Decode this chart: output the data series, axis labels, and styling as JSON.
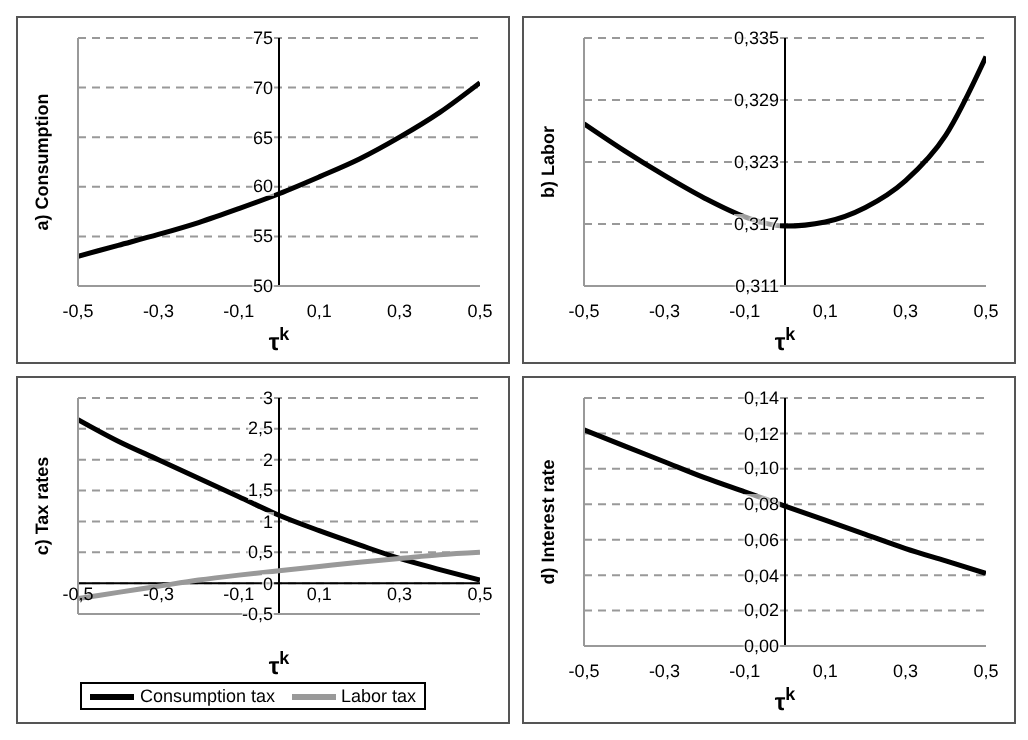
{
  "chart_data": [
    {
      "type": "line",
      "ylabel": "a) Consumption",
      "xlabel": "τ$^{k}$",
      "x": [
        -0.5,
        -0.4,
        -0.3,
        -0.2,
        -0.1,
        0,
        0.1,
        0.2,
        0.3,
        0.4,
        0.5
      ],
      "series": [
        {
          "color": "#000000",
          "values": [
            53,
            54.1,
            55.2,
            56.4,
            57.8,
            59.3,
            61,
            62.8,
            65,
            67.5,
            70.5
          ]
        }
      ],
      "xlim": [
        -0.5,
        0.5
      ],
      "xticks": [
        {
          "value": -0.5,
          "label": "-0,5"
        },
        {
          "value": -0.3,
          "label": "-0,3"
        },
        {
          "value": -0.1,
          "label": "-0,1"
        },
        {
          "value": 0.1,
          "label": "0,1"
        },
        {
          "value": 0.3,
          "label": "0,3"
        },
        {
          "value": 0.5,
          "label": "0,5"
        }
      ],
      "ylim": [
        50,
        75
      ],
      "yticks": [
        50,
        55,
        60,
        65,
        70,
        75
      ],
      "grid": "y"
    },
    {
      "type": "line",
      "ylabel": "b) Labor",
      "xlabel": "τ$^{k}$",
      "x": [
        -0.5,
        -0.4,
        -0.3,
        -0.2,
        -0.1,
        0,
        0.1,
        0.2,
        0.3,
        0.4,
        0.5
      ],
      "series": [
        {
          "color": "#000000",
          "values": [
            0.3267,
            0.3241,
            0.3217,
            0.3195,
            0.3177,
            0.3168,
            0.3172,
            0.3186,
            0.3212,
            0.3256,
            0.3332
          ]
        }
      ],
      "xlim": [
        -0.5,
        0.5
      ],
      "xticks": [
        {
          "value": -0.5,
          "label": "-0,5"
        },
        {
          "value": -0.3,
          "label": "-0,3"
        },
        {
          "value": -0.1,
          "label": "-0,1"
        },
        {
          "value": 0.1,
          "label": "0,1"
        },
        {
          "value": 0.3,
          "label": "0,3"
        },
        {
          "value": 0.5,
          "label": "0,5"
        }
      ],
      "ylim": [
        0.311,
        0.335
      ],
      "yticks": [
        {
          "value": 0.311,
          "label": "0,311"
        },
        {
          "value": 0.317,
          "label": "0,317"
        },
        {
          "value": 0.323,
          "label": "0,323"
        },
        {
          "value": 0.329,
          "label": "0,329"
        },
        {
          "value": 0.335,
          "label": "0,335"
        }
      ],
      "grid": "y"
    },
    {
      "type": "line",
      "ylabel": "c) Tax rates",
      "xlabel": "τ$^{k}$",
      "x": [
        -0.5,
        -0.4,
        -0.3,
        -0.2,
        -0.1,
        0,
        0.1,
        0.2,
        0.3,
        0.4,
        0.5
      ],
      "series": [
        {
          "name": "Consumption tax",
          "color": "#000000",
          "values": [
            2.65,
            2.3,
            2.0,
            1.7,
            1.4,
            1.1,
            0.85,
            0.62,
            0.4,
            0.22,
            0.05
          ]
        },
        {
          "name": "Labor tax",
          "color": "#999999",
          "values": [
            -0.25,
            -0.15,
            -0.05,
            0.05,
            0.13,
            0.2,
            0.27,
            0.34,
            0.4,
            0.46,
            0.5
          ]
        }
      ],
      "xlim": [
        -0.5,
        0.5
      ],
      "xticks": [
        {
          "value": -0.5,
          "label": "-0,5"
        },
        {
          "value": -0.3,
          "label": "-0,3"
        },
        {
          "value": -0.1,
          "label": "-0,1"
        },
        {
          "value": 0.1,
          "label": "0,1"
        },
        {
          "value": 0.3,
          "label": "0,3"
        },
        {
          "value": 0.5,
          "label": "0,5"
        }
      ],
      "ylim": [
        -0.5,
        3
      ],
      "yticks": [
        {
          "value": -0.5,
          "label": "-0,5"
        },
        0,
        {
          "value": 0.5,
          "label": "0,5"
        },
        1,
        {
          "value": 1.5,
          "label": "1,5"
        },
        2,
        {
          "value": 2.5,
          "label": "2,5"
        },
        3
      ],
      "grid": "y",
      "legend": "bottom"
    },
    {
      "type": "line",
      "ylabel": "d) Interest rate",
      "xlabel": "τ$^{k}$",
      "x": [
        -0.5,
        -0.4,
        -0.3,
        -0.2,
        -0.1,
        0,
        0.1,
        0.2,
        0.3,
        0.4,
        0.5
      ],
      "series": [
        {
          "color": "#000000",
          "values": [
            0.122,
            0.113,
            0.104,
            0.095,
            0.087,
            0.079,
            0.071,
            0.063,
            0.055,
            0.048,
            0.041
          ]
        }
      ],
      "xlim": [
        -0.5,
        0.5
      ],
      "xticks": [
        {
          "value": -0.5,
          "label": "-0,5"
        },
        {
          "value": -0.3,
          "label": "-0,3"
        },
        {
          "value": -0.1,
          "label": "-0,1"
        },
        {
          "value": 0.1,
          "label": "0,1"
        },
        {
          "value": 0.3,
          "label": "0,3"
        },
        {
          "value": 0.5,
          "label": "0,5"
        }
      ],
      "ylim": [
        0,
        0.14
      ],
      "yticks": [
        {
          "value": 0,
          "label": "0,00"
        },
        {
          "value": 0.02,
          "label": "0,02"
        },
        {
          "value": 0.04,
          "label": "0,04"
        },
        {
          "value": 0.06,
          "label": "0,06"
        },
        {
          "value": 0.08,
          "label": "0,08"
        },
        {
          "value": 0.1,
          "label": "0,10"
        },
        {
          "value": 0.12,
          "label": "0,12"
        },
        {
          "value": 0.14,
          "label": "0,14"
        }
      ],
      "grid": "y"
    }
  ]
}
